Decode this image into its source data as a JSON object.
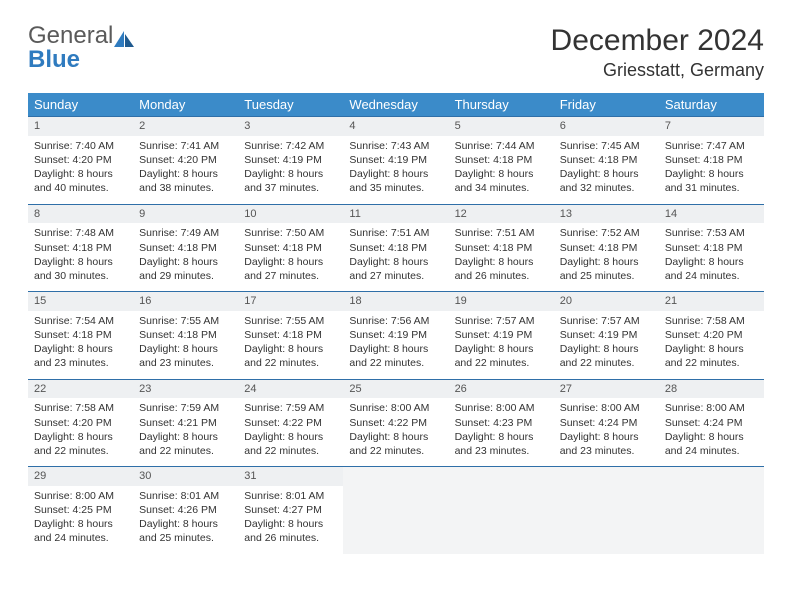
{
  "logo": {
    "text1": "General",
    "text2": "Blue"
  },
  "title": "December 2024",
  "location": "Griesstatt, Germany",
  "colors": {
    "header_bg": "#3b8bc9",
    "header_text": "#ffffff",
    "daynum_bg": "#eef0f2",
    "row_border": "#2f6fa8",
    "logo_gray": "#5a5a5a",
    "logo_blue": "#2f7bbf"
  },
  "weekdays": [
    "Sunday",
    "Monday",
    "Tuesday",
    "Wednesday",
    "Thursday",
    "Friday",
    "Saturday"
  ],
  "weeks": [
    [
      {
        "n": "1",
        "sr": "7:40 AM",
        "ss": "4:20 PM",
        "dl": "8 hours and 40 minutes."
      },
      {
        "n": "2",
        "sr": "7:41 AM",
        "ss": "4:20 PM",
        "dl": "8 hours and 38 minutes."
      },
      {
        "n": "3",
        "sr": "7:42 AM",
        "ss": "4:19 PM",
        "dl": "8 hours and 37 minutes."
      },
      {
        "n": "4",
        "sr": "7:43 AM",
        "ss": "4:19 PM",
        "dl": "8 hours and 35 minutes."
      },
      {
        "n": "5",
        "sr": "7:44 AM",
        "ss": "4:18 PM",
        "dl": "8 hours and 34 minutes."
      },
      {
        "n": "6",
        "sr": "7:45 AM",
        "ss": "4:18 PM",
        "dl": "8 hours and 32 minutes."
      },
      {
        "n": "7",
        "sr": "7:47 AM",
        "ss": "4:18 PM",
        "dl": "8 hours and 31 minutes."
      }
    ],
    [
      {
        "n": "8",
        "sr": "7:48 AM",
        "ss": "4:18 PM",
        "dl": "8 hours and 30 minutes."
      },
      {
        "n": "9",
        "sr": "7:49 AM",
        "ss": "4:18 PM",
        "dl": "8 hours and 29 minutes."
      },
      {
        "n": "10",
        "sr": "7:50 AM",
        "ss": "4:18 PM",
        "dl": "8 hours and 27 minutes."
      },
      {
        "n": "11",
        "sr": "7:51 AM",
        "ss": "4:18 PM",
        "dl": "8 hours and 27 minutes."
      },
      {
        "n": "12",
        "sr": "7:51 AM",
        "ss": "4:18 PM",
        "dl": "8 hours and 26 minutes."
      },
      {
        "n": "13",
        "sr": "7:52 AM",
        "ss": "4:18 PM",
        "dl": "8 hours and 25 minutes."
      },
      {
        "n": "14",
        "sr": "7:53 AM",
        "ss": "4:18 PM",
        "dl": "8 hours and 24 minutes."
      }
    ],
    [
      {
        "n": "15",
        "sr": "7:54 AM",
        "ss": "4:18 PM",
        "dl": "8 hours and 23 minutes."
      },
      {
        "n": "16",
        "sr": "7:55 AM",
        "ss": "4:18 PM",
        "dl": "8 hours and 23 minutes."
      },
      {
        "n": "17",
        "sr": "7:55 AM",
        "ss": "4:18 PM",
        "dl": "8 hours and 22 minutes."
      },
      {
        "n": "18",
        "sr": "7:56 AM",
        "ss": "4:19 PM",
        "dl": "8 hours and 22 minutes."
      },
      {
        "n": "19",
        "sr": "7:57 AM",
        "ss": "4:19 PM",
        "dl": "8 hours and 22 minutes."
      },
      {
        "n": "20",
        "sr": "7:57 AM",
        "ss": "4:19 PM",
        "dl": "8 hours and 22 minutes."
      },
      {
        "n": "21",
        "sr": "7:58 AM",
        "ss": "4:20 PM",
        "dl": "8 hours and 22 minutes."
      }
    ],
    [
      {
        "n": "22",
        "sr": "7:58 AM",
        "ss": "4:20 PM",
        "dl": "8 hours and 22 minutes."
      },
      {
        "n": "23",
        "sr": "7:59 AM",
        "ss": "4:21 PM",
        "dl": "8 hours and 22 minutes."
      },
      {
        "n": "24",
        "sr": "7:59 AM",
        "ss": "4:22 PM",
        "dl": "8 hours and 22 minutes."
      },
      {
        "n": "25",
        "sr": "8:00 AM",
        "ss": "4:22 PM",
        "dl": "8 hours and 22 minutes."
      },
      {
        "n": "26",
        "sr": "8:00 AM",
        "ss": "4:23 PM",
        "dl": "8 hours and 23 minutes."
      },
      {
        "n": "27",
        "sr": "8:00 AM",
        "ss": "4:24 PM",
        "dl": "8 hours and 23 minutes."
      },
      {
        "n": "28",
        "sr": "8:00 AM",
        "ss": "4:24 PM",
        "dl": "8 hours and 24 minutes."
      }
    ],
    [
      {
        "n": "29",
        "sr": "8:00 AM",
        "ss": "4:25 PM",
        "dl": "8 hours and 24 minutes."
      },
      {
        "n": "30",
        "sr": "8:01 AM",
        "ss": "4:26 PM",
        "dl": "8 hours and 25 minutes."
      },
      {
        "n": "31",
        "sr": "8:01 AM",
        "ss": "4:27 PM",
        "dl": "8 hours and 26 minutes."
      },
      null,
      null,
      null,
      null
    ]
  ],
  "labels": {
    "sunrise": "Sunrise:",
    "sunset": "Sunset:",
    "daylight": "Daylight:"
  }
}
